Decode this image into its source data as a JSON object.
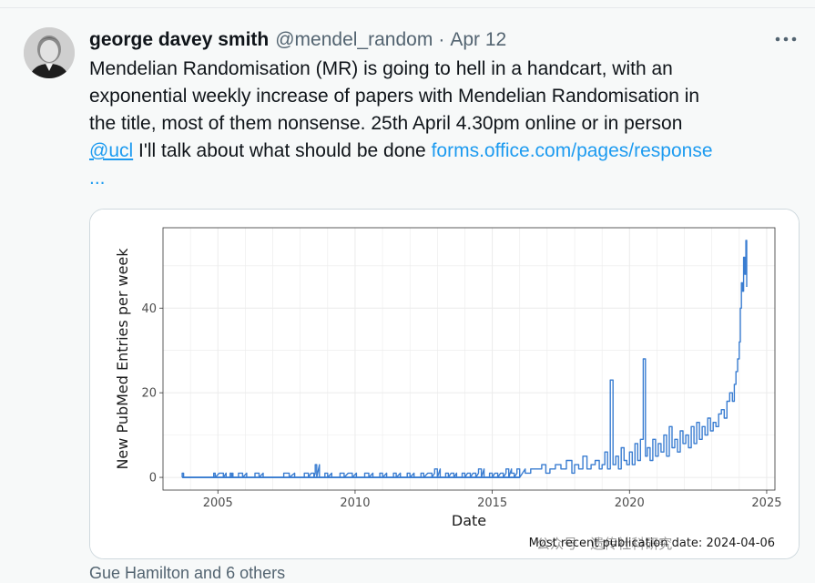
{
  "tweet": {
    "author_name": "george davey smith",
    "handle": "@mendel_random",
    "separator": "·",
    "date": "Apr 12",
    "text_line1": "Mendelian Randomisation (MR) is going to hell in a handcart, with an",
    "text_line2": "exponential weekly increase  of papers with Mendelian Randomisation in",
    "text_line3": "the title, most of them nonsense. 25th April 4.30pm online or in person",
    "mention": "@ucl",
    "text_line4_rest": " I'll talk about what should be done ",
    "link": "forms.office.com/pages/response",
    "ellipsis": "...",
    "more_icon": "more-horizontal-icon",
    "footer": "Gue Hamilton and 6 others"
  },
  "chart_data": {
    "type": "line",
    "xlabel": "Date",
    "ylabel": "New PubMed Entries per week",
    "x_ticks": [
      "2005",
      "2010",
      "2015",
      "2020",
      "2025"
    ],
    "y_ticks": [
      "0",
      "20",
      "40"
    ],
    "xlim": [
      2003.0,
      2025.3
    ],
    "ylim": [
      -3,
      59
    ],
    "grid": true,
    "caption": "Most recent publication date: 2024-04-06",
    "watermark": "公众号 · 遗传社科研究",
    "series": [
      {
        "color": "#3a7dd1",
        "x": [
          2003.7,
          2003.8,
          2004.8,
          2004.9,
          2005.2,
          2005.4,
          2005.5,
          2005.6,
          2005.9,
          2006.2,
          2006.5,
          2006.8,
          2007.2,
          2007.6,
          2008.0,
          2008.3,
          2008.5,
          2008.6,
          2008.8,
          2009.0,
          2009.3,
          2009.6,
          2009.9,
          2010.2,
          2010.5,
          2010.8,
          2011.0,
          2011.3,
          2011.5,
          2011.8,
          2012.0,
          2012.3,
          2012.5,
          2012.8,
          2013.0,
          2013.2,
          2013.4,
          2013.6,
          2013.8,
          2014.0,
          2014.2,
          2014.4,
          2014.6,
          2014.8,
          2015.0,
          2015.2,
          2015.4,
          2015.6,
          2015.8,
          2016.0,
          2016.2,
          2016.4,
          2016.6,
          2016.8,
          2016.95,
          2017.1,
          2017.3,
          2017.5,
          2017.7,
          2017.9,
          2018.0,
          2018.15,
          2018.3,
          2018.45,
          2018.6,
          2018.75,
          2018.9,
          2019.0,
          2019.1,
          2019.2,
          2019.3,
          2019.4,
          2019.5,
          2019.6,
          2019.7,
          2019.8,
          2019.9,
          2020.0,
          2020.1,
          2020.2,
          2020.3,
          2020.4,
          2020.5,
          2020.58,
          2020.65,
          2020.75,
          2020.85,
          2020.95,
          2021.05,
          2021.15,
          2021.25,
          2021.35,
          2021.45,
          2021.55,
          2021.65,
          2021.75,
          2021.85,
          2021.95,
          2022.05,
          2022.15,
          2022.25,
          2022.35,
          2022.45,
          2022.55,
          2022.65,
          2022.75,
          2022.85,
          2022.95,
          2023.05,
          2023.15,
          2023.25,
          2023.35,
          2023.45,
          2023.55,
          2023.65,
          2023.75,
          2023.82,
          2023.88,
          2023.94,
          2024.0,
          2024.04,
          2024.08,
          2024.12,
          2024.16,
          2024.2,
          2024.24,
          2024.27
        ],
        "y": [
          1,
          0,
          0,
          1,
          1,
          0,
          1,
          0,
          1,
          0,
          1,
          0,
          0,
          1,
          0,
          1,
          1,
          3,
          0,
          1,
          0,
          1,
          1,
          0,
          1,
          0,
          1,
          0,
          1,
          0,
          1,
          0,
          1,
          1,
          2,
          0,
          1,
          1,
          0,
          1,
          1,
          1,
          2,
          0,
          1,
          1,
          1,
          2,
          1,
          2,
          1,
          2,
          2,
          3,
          1,
          2,
          3,
          2,
          4,
          1,
          3,
          2,
          5,
          2,
          3,
          4,
          2,
          3,
          6,
          2,
          23,
          3,
          5,
          2,
          7,
          4,
          3,
          6,
          3,
          8,
          4,
          9,
          28,
          5,
          7,
          4,
          9,
          5,
          8,
          6,
          10,
          5,
          12,
          7,
          9,
          6,
          11,
          8,
          10,
          7,
          12,
          8,
          13,
          9,
          12,
          10,
          14,
          11,
          13,
          12,
          15,
          16,
          14,
          18,
          20,
          18,
          22,
          25,
          28,
          32,
          40,
          46,
          44,
          52,
          48,
          56,
          45
        ]
      }
    ]
  }
}
